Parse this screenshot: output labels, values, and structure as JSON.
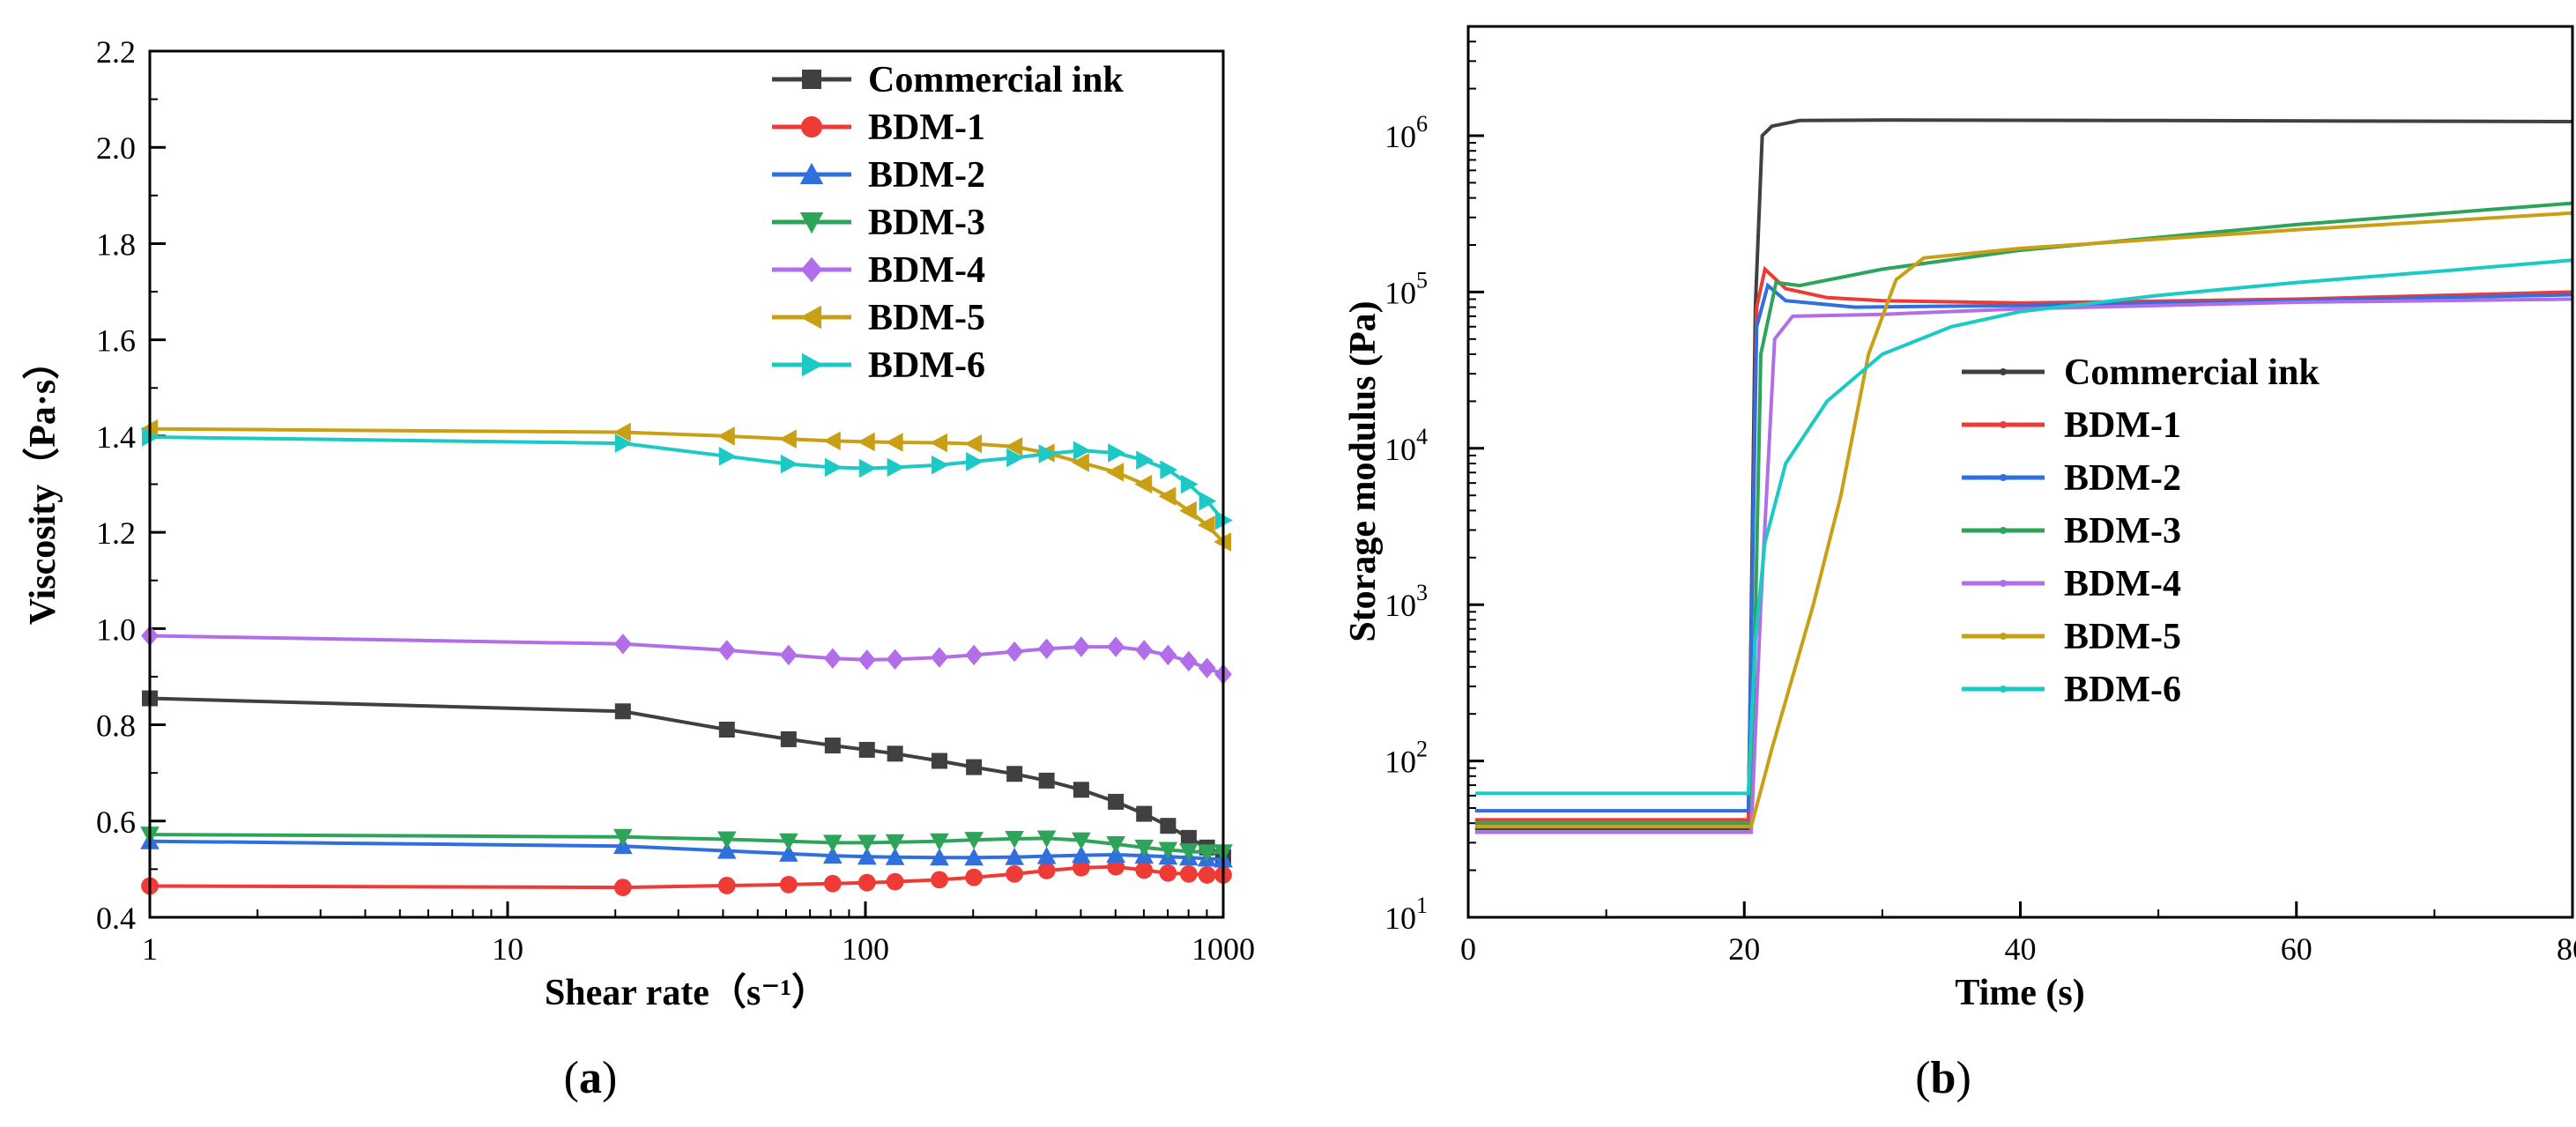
{
  "panel_captions": [
    "(a)",
    "(b)"
  ],
  "colors": {
    "commercial": "#404040",
    "bdm1": "#ee3b36",
    "bdm2": "#2f6fde",
    "bdm3": "#2ea45a",
    "bdm4": "#b16ee8",
    "bdm5": "#c9a015",
    "bdm6": "#1cc9c4"
  },
  "chart_data": [
    {
      "type": "line",
      "panel": "(a)",
      "title": "",
      "xlabel": "Shear rate（s⁻¹）",
      "ylabel": "Viscosity（Pa·s）",
      "xscale": "log",
      "xlim": [
        1,
        1000
      ],
      "ylim": [
        0.4,
        2.2
      ],
      "xticks": [
        "1",
        "10",
        "100",
        "1000"
      ],
      "yticks": [
        "0.4",
        "0.6",
        "0.8",
        "1.0",
        "1.2",
        "1.4",
        "1.6",
        "1.8",
        "2.0",
        "2.2"
      ],
      "legend_position": "top-right",
      "series": [
        {
          "name": "Commercial ink",
          "marker": "square",
          "color": "#404040",
          "points": [
            [
              1,
              0.855
            ],
            [
              21,
              0.828
            ],
            [
              41,
              0.79
            ],
            [
              61,
              0.77
            ],
            [
              81,
              0.757
            ],
            [
              101,
              0.748
            ],
            [
              121,
              0.74
            ],
            [
              161,
              0.725
            ],
            [
              201,
              0.712
            ],
            [
              261,
              0.698
            ],
            [
              321,
              0.684
            ],
            [
              401,
              0.665
            ],
            [
              501,
              0.64
            ],
            [
              601,
              0.615
            ],
            [
              701,
              0.59
            ],
            [
              801,
              0.565
            ],
            [
              901,
              0.545
            ],
            [
              1000,
              0.525
            ]
          ]
        },
        {
          "name": "BDM-1",
          "marker": "circle",
          "color": "#ee3b36",
          "points": [
            [
              1,
              0.465
            ],
            [
              21,
              0.462
            ],
            [
              41,
              0.466
            ],
            [
              61,
              0.468
            ],
            [
              81,
              0.47
            ],
            [
              101,
              0.472
            ],
            [
              121,
              0.474
            ],
            [
              161,
              0.478
            ],
            [
              201,
              0.483
            ],
            [
              261,
              0.49
            ],
            [
              321,
              0.497
            ],
            [
              401,
              0.503
            ],
            [
              501,
              0.505
            ],
            [
              601,
              0.498
            ],
            [
              701,
              0.492
            ],
            [
              801,
              0.49
            ],
            [
              901,
              0.488
            ],
            [
              1000,
              0.488
            ]
          ]
        },
        {
          "name": "BDM-2",
          "marker": "triangle-up",
          "color": "#2f6fde",
          "points": [
            [
              1,
              0.558
            ],
            [
              21,
              0.548
            ],
            [
              41,
              0.538
            ],
            [
              61,
              0.532
            ],
            [
              81,
              0.528
            ],
            [
              101,
              0.526
            ],
            [
              121,
              0.525
            ],
            [
              161,
              0.524
            ],
            [
              201,
              0.524
            ],
            [
              261,
              0.525
            ],
            [
              321,
              0.527
            ],
            [
              401,
              0.529
            ],
            [
              501,
              0.53
            ],
            [
              601,
              0.528
            ],
            [
              701,
              0.526
            ],
            [
              801,
              0.524
            ],
            [
              901,
              0.522
            ],
            [
              1000,
              0.52
            ]
          ]
        },
        {
          "name": "BDM-3",
          "marker": "triangle-down",
          "color": "#2ea45a",
          "points": [
            [
              1,
              0.572
            ],
            [
              21,
              0.567
            ],
            [
              41,
              0.562
            ],
            [
              61,
              0.558
            ],
            [
              81,
              0.555
            ],
            [
              101,
              0.555
            ],
            [
              121,
              0.556
            ],
            [
              161,
              0.558
            ],
            [
              201,
              0.561
            ],
            [
              261,
              0.563
            ],
            [
              321,
              0.564
            ],
            [
              401,
              0.56
            ],
            [
              501,
              0.552
            ],
            [
              601,
              0.545
            ],
            [
              701,
              0.54
            ],
            [
              801,
              0.537
            ],
            [
              901,
              0.535
            ],
            [
              1000,
              0.535
            ]
          ]
        },
        {
          "name": "BDM-4",
          "marker": "diamond",
          "color": "#b16ee8",
          "points": [
            [
              1,
              0.985
            ],
            [
              21,
              0.968
            ],
            [
              41,
              0.955
            ],
            [
              61,
              0.945
            ],
            [
              81,
              0.938
            ],
            [
              101,
              0.935
            ],
            [
              121,
              0.936
            ],
            [
              161,
              0.94
            ],
            [
              201,
              0.945
            ],
            [
              261,
              0.952
            ],
            [
              321,
              0.958
            ],
            [
              401,
              0.962
            ],
            [
              501,
              0.962
            ],
            [
              601,
              0.955
            ],
            [
              701,
              0.945
            ],
            [
              801,
              0.932
            ],
            [
              901,
              0.918
            ],
            [
              1000,
              0.905
            ]
          ]
        },
        {
          "name": "BDM-5",
          "marker": "triangle-left",
          "color": "#c9a015",
          "points": [
            [
              1,
              1.415
            ],
            [
              21,
              1.408
            ],
            [
              41,
              1.4
            ],
            [
              61,
              1.394
            ],
            [
              81,
              1.39
            ],
            [
              101,
              1.388
            ],
            [
              121,
              1.387
            ],
            [
              161,
              1.386
            ],
            [
              201,
              1.384
            ],
            [
              261,
              1.378
            ],
            [
              321,
              1.365
            ],
            [
              401,
              1.345
            ],
            [
              501,
              1.325
            ],
            [
              601,
              1.3
            ],
            [
              701,
              1.275
            ],
            [
              801,
              1.245
            ],
            [
              901,
              1.215
            ],
            [
              1000,
              1.18
            ]
          ]
        },
        {
          "name": "BDM-6",
          "marker": "triangle-right",
          "color": "#1cc9c4",
          "points": [
            [
              1,
              1.398
            ],
            [
              21,
              1.385
            ],
            [
              41,
              1.358
            ],
            [
              61,
              1.342
            ],
            [
              81,
              1.335
            ],
            [
              101,
              1.333
            ],
            [
              121,
              1.335
            ],
            [
              161,
              1.34
            ],
            [
              201,
              1.347
            ],
            [
              261,
              1.355
            ],
            [
              321,
              1.363
            ],
            [
              401,
              1.37
            ],
            [
              501,
              1.365
            ],
            [
              601,
              1.35
            ],
            [
              701,
              1.33
            ],
            [
              801,
              1.3
            ],
            [
              901,
              1.265
            ],
            [
              1000,
              1.225
            ]
          ]
        }
      ]
    },
    {
      "type": "line",
      "panel": "(b)",
      "title": "",
      "xlabel": "Time (s)",
      "ylabel": "Storage modulus (Pa)",
      "yscale": "log",
      "xlim": [
        0,
        80
      ],
      "ylim": [
        10,
        5000000
      ],
      "xticks": [
        "0",
        "20",
        "40",
        "60",
        "80"
      ],
      "yticks": [
        {
          "base": "10",
          "exp": "1"
        },
        {
          "base": "10",
          "exp": "2"
        },
        {
          "base": "10",
          "exp": "3"
        },
        {
          "base": "10",
          "exp": "4"
        },
        {
          "base": "10",
          "exp": "5"
        },
        {
          "base": "10",
          "exp": "6"
        }
      ],
      "legend_position": "center-right",
      "series": [
        {
          "name": "Commercial ink",
          "color": "#404040",
          "points": [
            [
              0.5,
              37
            ],
            [
              20.3,
              37
            ],
            [
              20.8,
              80000
            ],
            [
              21.3,
              1000000
            ],
            [
              22,
              1150000
            ],
            [
              24,
              1250000
            ],
            [
              30,
              1260000
            ],
            [
              50,
              1250000
            ],
            [
              80,
              1230000
            ]
          ]
        },
        {
          "name": "BDM-1",
          "color": "#ee3b36",
          "points": [
            [
              0.5,
              42
            ],
            [
              20.3,
              42
            ],
            [
              20.9,
              80000
            ],
            [
              21.5,
              140000
            ],
            [
              23,
              105000
            ],
            [
              26,
              92000
            ],
            [
              30,
              88000
            ],
            [
              40,
              85000
            ],
            [
              60,
              90000
            ],
            [
              80,
              100000
            ]
          ]
        },
        {
          "name": "BDM-2",
          "color": "#2f6fde",
          "points": [
            [
              0.5,
              48
            ],
            [
              20.3,
              48
            ],
            [
              20.9,
              60000
            ],
            [
              21.7,
              110000
            ],
            [
              23,
              88000
            ],
            [
              28,
              80000
            ],
            [
              40,
              82000
            ],
            [
              60,
              88000
            ],
            [
              80,
              96000
            ]
          ]
        },
        {
          "name": "BDM-3",
          "color": "#2ea45a",
          "points": [
            [
              0.5,
              40
            ],
            [
              20.5,
              40
            ],
            [
              21.2,
              40000
            ],
            [
              22.3,
              115000
            ],
            [
              24,
              110000
            ],
            [
              30,
              140000
            ],
            [
              40,
              185000
            ],
            [
              60,
              270000
            ],
            [
              80,
              370000
            ]
          ]
        },
        {
          "name": "BDM-4",
          "color": "#b16ee8",
          "points": [
            [
              0.5,
              35
            ],
            [
              20.5,
              35
            ],
            [
              21.2,
              1000
            ],
            [
              22.2,
              50000
            ],
            [
              23.5,
              70000
            ],
            [
              30,
              72000
            ],
            [
              40,
              78000
            ],
            [
              60,
              86000
            ],
            [
              80,
              90000
            ]
          ]
        },
        {
          "name": "BDM-5",
          "color": "#c9a015",
          "points": [
            [
              0.5,
              38
            ],
            [
              20.5,
              38
            ],
            [
              22,
              120
            ],
            [
              25,
              1000
            ],
            [
              27,
              5000
            ],
            [
              29,
              40000
            ],
            [
              31,
              120000
            ],
            [
              33,
              165000
            ],
            [
              40,
              190000
            ],
            [
              60,
              250000
            ],
            [
              80,
              320000
            ]
          ]
        },
        {
          "name": "BDM-6",
          "color": "#1cc9c4",
          "points": [
            [
              0.5,
              62
            ],
            [
              20.3,
              62
            ],
            [
              20.8,
              600
            ],
            [
              21.5,
              2500
            ],
            [
              23,
              8000
            ],
            [
              26,
              20000
            ],
            [
              30,
              40000
            ],
            [
              35,
              60000
            ],
            [
              40,
              75000
            ],
            [
              50,
              95000
            ],
            [
              60,
              115000
            ],
            [
              70,
              135000
            ],
            [
              80,
              160000
            ]
          ]
        }
      ]
    }
  ]
}
